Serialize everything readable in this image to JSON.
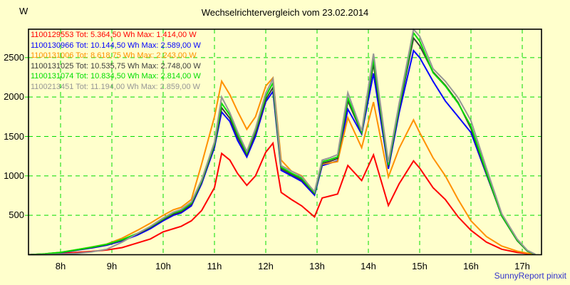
{
  "chart": {
    "title": "Wechselrichtervergleich vom 23.02.2014",
    "y_unit": "W",
    "credit": "SunnyReport pinxit"
  },
  "colors": {
    "background": "#ffffcc",
    "grid": "#00dc00",
    "axis": "#000000",
    "credit_text": "#3333cc"
  },
  "legend": {
    "entries": [
      {
        "label": "1100129553 Tot: 5.364,50 Wh Max: 1.414,00 W",
        "color": "#ff0000"
      },
      {
        "label": "1100130966 Tot: 10.144,50 Wh Max: 2.589,00 W",
        "color": "#0000ff"
      },
      {
        "label": "1100131006 Tot: 8.618,75 Wh Max: 2.243,00 W",
        "color": "#ff9100"
      },
      {
        "label": "1100131025 Tot: 10.535,75 Wh Max: 2.748,00 W",
        "color": "#3c3c3c"
      },
      {
        "label": "1100131074 Tot: 10.834,50 Wh Max: 2.814,00 W",
        "color": "#00dd00"
      },
      {
        "label": "1100213451 Tot: 11.194,00 Wh Max: 2.859,00 W",
        "color": "#969696"
      }
    ]
  },
  "chart_data": {
    "type": "line",
    "title": "Wechselrichtervergleich vom 23.02.2014",
    "xlabel": "",
    "ylabel": "W",
    "grid": true,
    "legend_position": "top-left",
    "xlim": [
      7.375,
      17.375
    ],
    "ylim": [
      0,
      2860
    ],
    "x_ticks": [
      {
        "label": "8h",
        "value": 8
      },
      {
        "label": "9h",
        "value": 9
      },
      {
        "label": "10h",
        "value": 10
      },
      {
        "label": "11h",
        "value": 11
      },
      {
        "label": "12h",
        "value": 12
      },
      {
        "label": "13h",
        "value": 13
      },
      {
        "label": "14h",
        "value": 14
      },
      {
        "label": "15h",
        "value": 15
      },
      {
        "label": "16h",
        "value": 16
      },
      {
        "label": "17h",
        "value": 17
      }
    ],
    "y_ticks": [
      {
        "label": "500",
        "value": 500
      },
      {
        "label": "1000",
        "value": 1000
      },
      {
        "label": "1500",
        "value": 1500
      },
      {
        "label": "2000",
        "value": 2000
      },
      {
        "label": "2500",
        "value": 2500
      }
    ],
    "x": [
      7.38,
      7.7,
      8.0,
      8.3,
      8.6,
      8.9,
      9.2,
      9.5,
      9.75,
      10.0,
      10.2,
      10.35,
      10.55,
      10.75,
      11.0,
      11.14,
      11.3,
      11.45,
      11.63,
      11.8,
      12.0,
      12.14,
      12.3,
      12.5,
      12.7,
      12.95,
      13.1,
      13.25,
      13.4,
      13.6,
      13.87,
      14.1,
      14.39,
      14.6,
      14.88,
      15.0,
      15.26,
      15.5,
      15.75,
      16.0,
      16.3,
      16.6,
      16.9,
      17.1,
      17.25
    ],
    "series": [
      {
        "name": "1100129553",
        "color": "#ff0000",
        "total_wh": "5.364,50",
        "max_w": "1.414,00",
        "values": [
          0,
          5,
          15,
          28,
          42,
          60,
          90,
          150,
          200,
          290,
          330,
          360,
          430,
          560,
          850,
          1285,
          1200,
          1030,
          880,
          1000,
          1300,
          1414,
          790,
          700,
          620,
          480,
          720,
          745,
          770,
          1131,
          941,
          1267,
          624,
          900,
          1190,
          1100,
          851,
          700,
          480,
          310,
          160,
          70,
          30,
          15,
          5
        ]
      },
      {
        "name": "1100130966",
        "color": "#0000ff",
        "total_wh": "10.144,50",
        "max_w": "2.589,00",
        "values": [
          0,
          10,
          25,
          55,
          85,
          120,
          175,
          250,
          330,
          430,
          500,
          530,
          620,
          900,
          1360,
          1810,
          1690,
          1450,
          1240,
          1500,
          1940,
          2070,
          1070,
          1000,
          930,
          755,
          1130,
          1160,
          1190,
          1846,
          1530,
          2300,
          1090,
          1800,
          2589,
          2500,
          2200,
          1950,
          1750,
          1550,
          1020,
          500,
          185,
          50,
          5
        ]
      },
      {
        "name": "1100131006",
        "color": "#ff9100",
        "total_wh": "8.618,75",
        "max_w": "2.243,00",
        "values": [
          0,
          12,
          30,
          62,
          98,
          135,
          210,
          310,
          400,
          500,
          570,
          600,
          700,
          1150,
          1750,
          2200,
          2030,
          1820,
          1590,
          1750,
          2140,
          2243,
          1200,
          1060,
          1000,
          790,
          1150,
          1165,
          1180,
          1738,
          1357,
          1936,
          986,
          1350,
          1710,
          1550,
          1230,
          1000,
          700,
          430,
          230,
          110,
          45,
          20,
          8
        ]
      },
      {
        "name": "1100131025",
        "color": "#3c3c3c",
        "total_wh": "10.535,75",
        "max_w": "2.748,00",
        "values": [
          0,
          10,
          28,
          58,
          90,
          128,
          185,
          262,
          345,
          445,
          515,
          545,
          640,
          920,
          1390,
          1864,
          1730,
          1490,
          1270,
          1540,
          1970,
          2120,
          1090,
          1020,
          950,
          775,
          1160,
          1185,
          1220,
          1950,
          1545,
          2420,
          1120,
          1850,
          2748,
          2650,
          2320,
          2150,
          1930,
          1600,
          1030,
          490,
          180,
          45,
          5
        ]
      },
      {
        "name": "1100131074",
        "color": "#00dd00",
        "total_wh": "10.834,50",
        "max_w": "2.814,00",
        "values": [
          0,
          12,
          30,
          62,
          95,
          133,
          192,
          270,
          355,
          455,
          530,
          560,
          655,
          935,
          1410,
          1919,
          1770,
          1530,
          1290,
          1580,
          2010,
          2180,
          1110,
          1035,
          970,
          785,
          1180,
          1205,
          1240,
          1991,
          1555,
          2480,
          1140,
          1880,
          2814,
          2710,
          2310,
          2140,
          1920,
          1630,
          1050,
          495,
          185,
          48,
          5
        ]
      },
      {
        "name": "1100213451",
        "color": "#969696",
        "total_wh": "11.194,00",
        "max_w": "2.859,00",
        "values": [
          0,
          3,
          8,
          15,
          35,
          70,
          160,
          270,
          360,
          465,
          540,
          575,
          670,
          950,
          1430,
          2000,
          1800,
          1560,
          1310,
          1600,
          2050,
          2230,
          1130,
          1060,
          990,
          800,
          1200,
          1230,
          1270,
          2054,
          1570,
          2550,
          1170,
          1920,
          2859,
          2770,
          2360,
          2200,
          1990,
          1700,
          1100,
          520,
          200,
          55,
          8
        ]
      }
    ]
  }
}
